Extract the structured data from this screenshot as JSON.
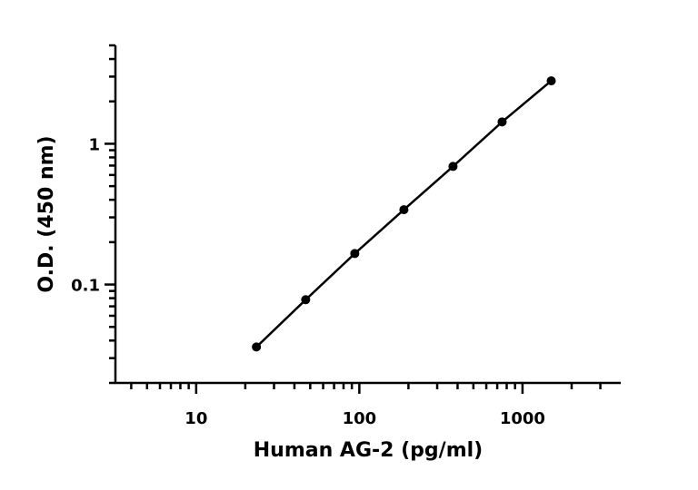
{
  "chart_data": {
    "type": "line",
    "x_label": "Human AG-2 (pg/ml)",
    "y_label": "O.D. (450 nm)",
    "log_x": true,
    "log_y": true,
    "xlim": [
      3.2,
      4000
    ],
    "ylim": [
      0.02,
      5
    ],
    "xticks": [
      10,
      100,
      1000
    ],
    "yticks": [
      0.1,
      1
    ],
    "x_minor_ticks": [
      4,
      5,
      6,
      7,
      8,
      9,
      20,
      30,
      40,
      50,
      60,
      70,
      80,
      90,
      200,
      300,
      400,
      500,
      600,
      700,
      800,
      900,
      2000,
      3000
    ],
    "y_minor_ticks": [
      0.02,
      0.03,
      0.04,
      0.05,
      0.06,
      0.07,
      0.08,
      0.09,
      0.2,
      0.3,
      0.4,
      0.5,
      0.6,
      0.7,
      0.8,
      0.9,
      2,
      3,
      4,
      5
    ],
    "series": [
      {
        "color": "#000000",
        "x": [
          23.4,
          46.9,
          93.75,
          187.5,
          375,
          750,
          1500
        ],
        "values": [
          0.036,
          0.078,
          0.166,
          0.34,
          0.69,
          1.43,
          2.8
        ]
      }
    ]
  }
}
